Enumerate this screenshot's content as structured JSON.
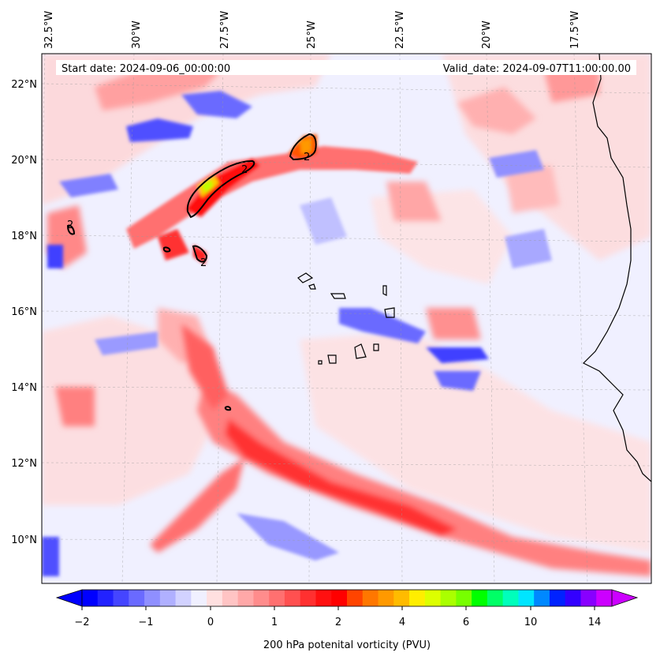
{
  "header": {
    "start_date": "Start date: 2024-09-06_00:00:00",
    "valid_date": "Valid_date: 2024-09-07T11:00:00.00"
  },
  "map": {
    "lon_labels": [
      "32.5°W",
      "30°W",
      "27.5°W",
      "25°W",
      "22.5°W",
      "20°W",
      "17.5°W"
    ],
    "lat_labels": [
      "22°N",
      "20°N",
      "18°N",
      "16°N",
      "14°N",
      "12°N",
      "10°N"
    ],
    "contour_label": "2",
    "colors": {
      "low": "#0000ff",
      "mid": "#f0f0ff",
      "high": "#ff0000",
      "extreme": "#cc00ff"
    }
  },
  "colorbar": {
    "title": "200 hPa potenital vorticity (PVU)",
    "tick_labels": [
      "−2",
      "−1",
      "0",
      "1",
      "2",
      "4",
      "6",
      "10",
      "14"
    ],
    "colors": [
      "#0000ff",
      "#2222ff",
      "#4545ff",
      "#6a6aff",
      "#8f8fff",
      "#b0b0ff",
      "#d2d2ff",
      "#f0f0ff",
      "#ffe0e0",
      "#ffc4c4",
      "#ffa8a8",
      "#ff8c8c",
      "#ff7070",
      "#ff5050",
      "#ff3030",
      "#ff1010",
      "#ff0000",
      "#ff4400",
      "#ff7700",
      "#ff9900",
      "#ffbb00",
      "#ffee00",
      "#ddff00",
      "#aaff00",
      "#77ff00",
      "#00ff00",
      "#00ff66",
      "#00ffbb",
      "#00e5ff",
      "#0088ff",
      "#0022ff",
      "#3300ff",
      "#8800ff",
      "#cc00ff"
    ]
  }
}
